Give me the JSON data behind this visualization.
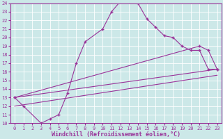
{
  "xlabel": "Windchill (Refroidissement éolien,°C)",
  "bg_color": "#cce8e8",
  "grid_color": "#ffffff",
  "line_color": "#993399",
  "spine_color": "#993399",
  "xlim": [
    -0.5,
    23.5
  ],
  "ylim": [
    10,
    24
  ],
  "yticks": [
    10,
    11,
    12,
    13,
    14,
    15,
    16,
    17,
    18,
    19,
    20,
    21,
    22,
    23,
    24
  ],
  "xticks": [
    0,
    1,
    2,
    3,
    4,
    5,
    6,
    7,
    8,
    9,
    10,
    11,
    12,
    13,
    14,
    15,
    16,
    17,
    18,
    19,
    20,
    21,
    22,
    23
  ],
  "curve1_x": [
    0,
    1,
    3,
    4,
    5,
    6,
    7,
    8,
    10,
    11,
    12,
    13,
    14,
    15,
    16,
    17,
    18,
    19,
    20,
    21,
    22,
    23
  ],
  "curve1_y": [
    13,
    12,
    10,
    10.5,
    11,
    13.5,
    17,
    19.5,
    21,
    23,
    24.2,
    24.3,
    24,
    22.2,
    21.2,
    20.2,
    20,
    19,
    18.5,
    18.5,
    16.3,
    16.3
  ],
  "curve2_x": [
    0,
    21,
    22,
    23
  ],
  "curve2_y": [
    13,
    19,
    18.5,
    16.3
  ],
  "curve3_x": [
    0,
    23
  ],
  "curve3_y": [
    13,
    16.3
  ],
  "curve4_x": [
    0,
    23
  ],
  "curve4_y": [
    12,
    15.6
  ],
  "marker_size": 2.5,
  "tick_fontsize": 5,
  "xlabel_fontsize": 6
}
